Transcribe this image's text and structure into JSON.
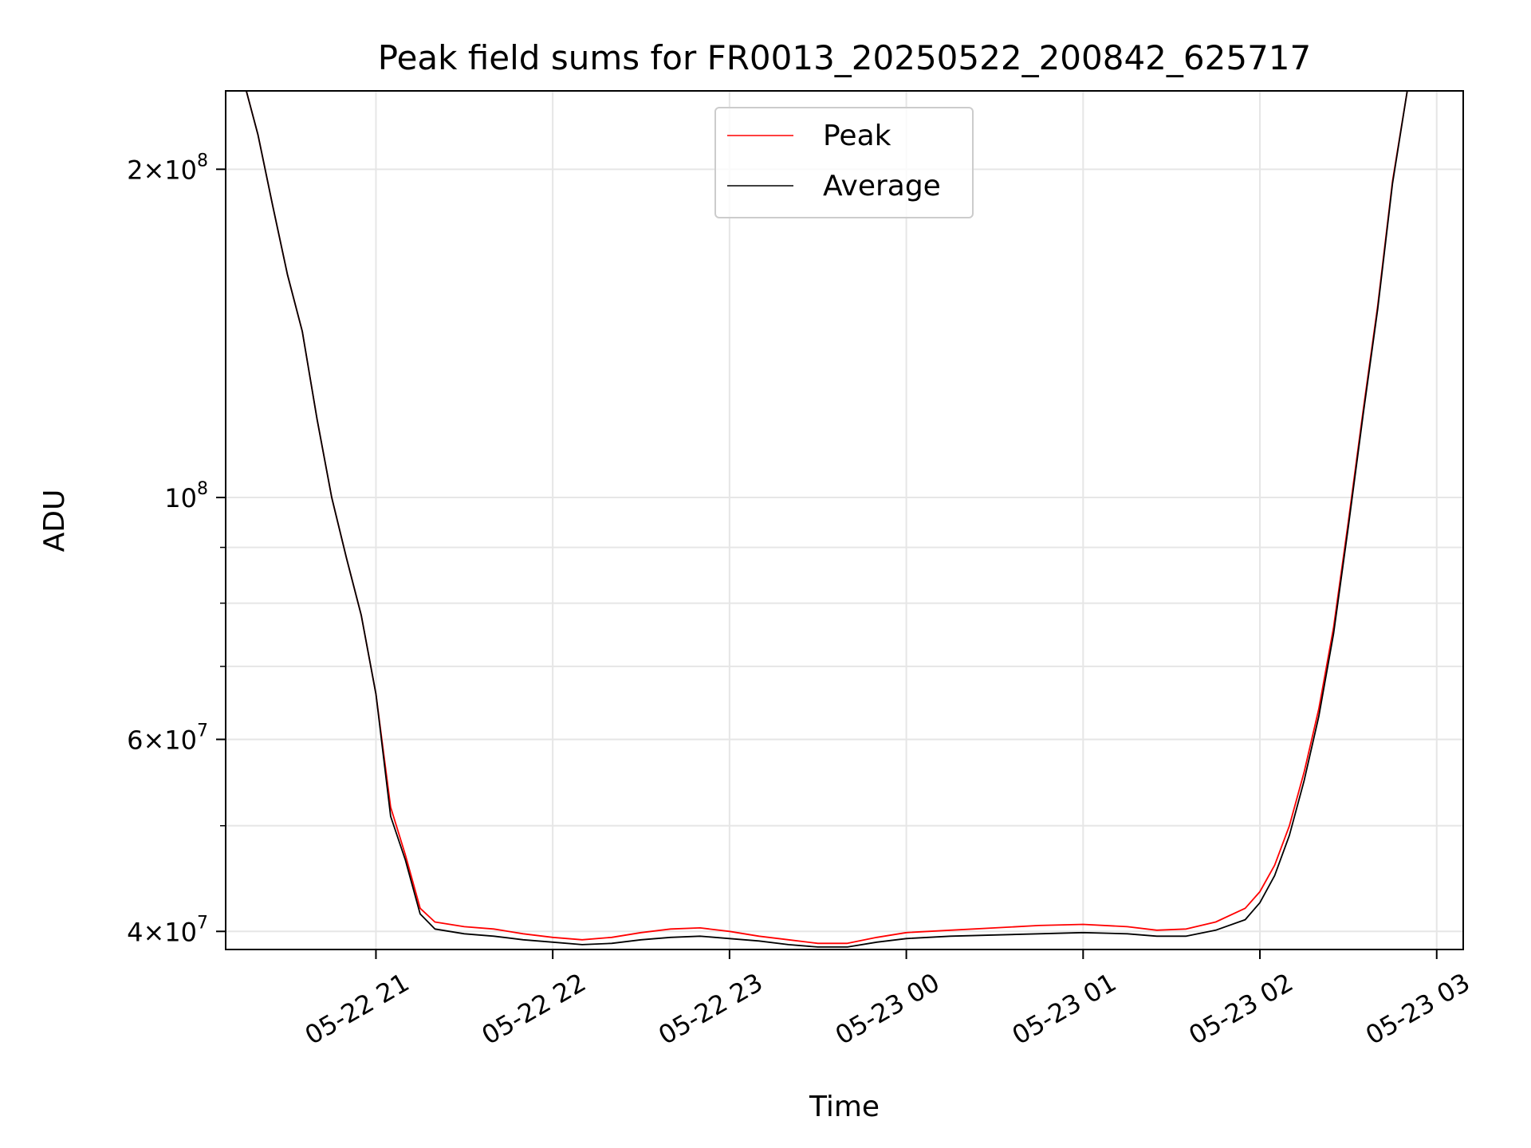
{
  "chart_data": {
    "type": "line",
    "title": "Peak field sums for FR0013_20250522_200842_625717",
    "xlabel": "Time",
    "ylabel": "ADU",
    "y_scale": "log",
    "ylim": [
      38500000,
      236000000
    ],
    "xlim": [
      "2025-05-22 20:09",
      "2025-05-23 03:09"
    ],
    "x_ticks": [
      "05-22 21",
      "05-22 22",
      "05-22 23",
      "05-23 00",
      "05-23 01",
      "05-23 02",
      "05-23 03"
    ],
    "y_ticks": [
      {
        "mantissa": "4",
        "exp": "7"
      },
      {
        "mantissa": "6",
        "exp": "7"
      },
      {
        "mantissa": "",
        "exp": "8"
      },
      {
        "mantissa": "2",
        "exp": "8"
      }
    ],
    "grid": true,
    "legend_placement": "upper-center",
    "series": [
      {
        "name": "Peak",
        "color": "#ff0000",
        "x": [
          "2025-05-22 20:09",
          "2025-05-22 20:16",
          "2025-05-22 20:20",
          "2025-05-22 20:25",
          "2025-05-22 20:30",
          "2025-05-22 20:35",
          "2025-05-22 20:40",
          "2025-05-22 20:45",
          "2025-05-22 20:50",
          "2025-05-22 20:55",
          "2025-05-22 21:00",
          "2025-05-22 21:05",
          "2025-05-22 21:10",
          "2025-05-22 21:15",
          "2025-05-22 21:20",
          "2025-05-22 21:30",
          "2025-05-22 21:40",
          "2025-05-22 21:50",
          "2025-05-22 22:00",
          "2025-05-22 22:10",
          "2025-05-22 22:20",
          "2025-05-22 22:30",
          "2025-05-22 22:40",
          "2025-05-22 22:50",
          "2025-05-22 23:00",
          "2025-05-22 23:10",
          "2025-05-22 23:20",
          "2025-05-22 23:30",
          "2025-05-22 23:40",
          "2025-05-22 23:50",
          "2025-05-23 00:00",
          "2025-05-23 00:15",
          "2025-05-23 00:30",
          "2025-05-23 00:45",
          "2025-05-23 01:00",
          "2025-05-23 01:15",
          "2025-05-23 01:25",
          "2025-05-23 01:35",
          "2025-05-23 01:45",
          "2025-05-23 01:55",
          "2025-05-23 02:00",
          "2025-05-23 02:05",
          "2025-05-23 02:10",
          "2025-05-23 02:15",
          "2025-05-23 02:20",
          "2025-05-23 02:25",
          "2025-05-23 02:30",
          "2025-05-23 02:35",
          "2025-05-23 02:40",
          "2025-05-23 02:45",
          "2025-05-23 02:50",
          "2025-05-23 03:09"
        ],
        "values": [
          236000000,
          236000000,
          215000000,
          185000000,
          160000000,
          142000000,
          118000000,
          100000000,
          88000000,
          78000000,
          66000000,
          52000000,
          47000000,
          42000000,
          40800000,
          40400000,
          40200000,
          39800000,
          39500000,
          39300000,
          39500000,
          39900000,
          40200000,
          40300000,
          40000000,
          39600000,
          39300000,
          39000000,
          39000000,
          39500000,
          39900000,
          40100000,
          40300000,
          40500000,
          40600000,
          40400000,
          40100000,
          40200000,
          40800000,
          42000000,
          43500000,
          46000000,
          50000000,
          56000000,
          64000000,
          76000000,
          95000000,
          120000000,
          150000000,
          195000000,
          236000000,
          236000000
        ]
      },
      {
        "name": "Average",
        "color": "#000000",
        "x": [
          "2025-05-22 20:09",
          "2025-05-22 20:16",
          "2025-05-22 20:20",
          "2025-05-22 20:25",
          "2025-05-22 20:30",
          "2025-05-22 20:35",
          "2025-05-22 20:40",
          "2025-05-22 20:45",
          "2025-05-22 20:50",
          "2025-05-22 20:55",
          "2025-05-22 21:00",
          "2025-05-22 21:05",
          "2025-05-22 21:10",
          "2025-05-22 21:15",
          "2025-05-22 21:20",
          "2025-05-22 21:30",
          "2025-05-22 21:40",
          "2025-05-22 21:50",
          "2025-05-22 22:00",
          "2025-05-22 22:10",
          "2025-05-22 22:20",
          "2025-05-22 22:30",
          "2025-05-22 22:40",
          "2025-05-22 22:50",
          "2025-05-22 23:00",
          "2025-05-22 23:10",
          "2025-05-22 23:20",
          "2025-05-22 23:30",
          "2025-05-22 23:40",
          "2025-05-22 23:50",
          "2025-05-23 00:00",
          "2025-05-23 00:15",
          "2025-05-23 00:30",
          "2025-05-23 00:45",
          "2025-05-23 01:00",
          "2025-05-23 01:15",
          "2025-05-23 01:25",
          "2025-05-23 01:35",
          "2025-05-23 01:45",
          "2025-05-23 01:55",
          "2025-05-23 02:00",
          "2025-05-23 02:05",
          "2025-05-23 02:10",
          "2025-05-23 02:15",
          "2025-05-23 02:20",
          "2025-05-23 02:25",
          "2025-05-23 02:30",
          "2025-05-23 02:35",
          "2025-05-23 02:40",
          "2025-05-23 02:45",
          "2025-05-23 02:50",
          "2025-05-23 03:09"
        ],
        "values": [
          236000000,
          236000000,
          215000000,
          185000000,
          160000000,
          142000000,
          118000000,
          100000000,
          88000000,
          78000000,
          66000000,
          51000000,
          46500000,
          41500000,
          40200000,
          39800000,
          39600000,
          39300000,
          39100000,
          38900000,
          39000000,
          39300000,
          39500000,
          39600000,
          39400000,
          39200000,
          38900000,
          38700000,
          38700000,
          39100000,
          39400000,
          39600000,
          39700000,
          39800000,
          39900000,
          39800000,
          39600000,
          39600000,
          40100000,
          41000000,
          42500000,
          45000000,
          49000000,
          55000000,
          63000000,
          75000000,
          94000000,
          119000000,
          149000000,
          194000000,
          236000000,
          236000000
        ]
      }
    ]
  }
}
